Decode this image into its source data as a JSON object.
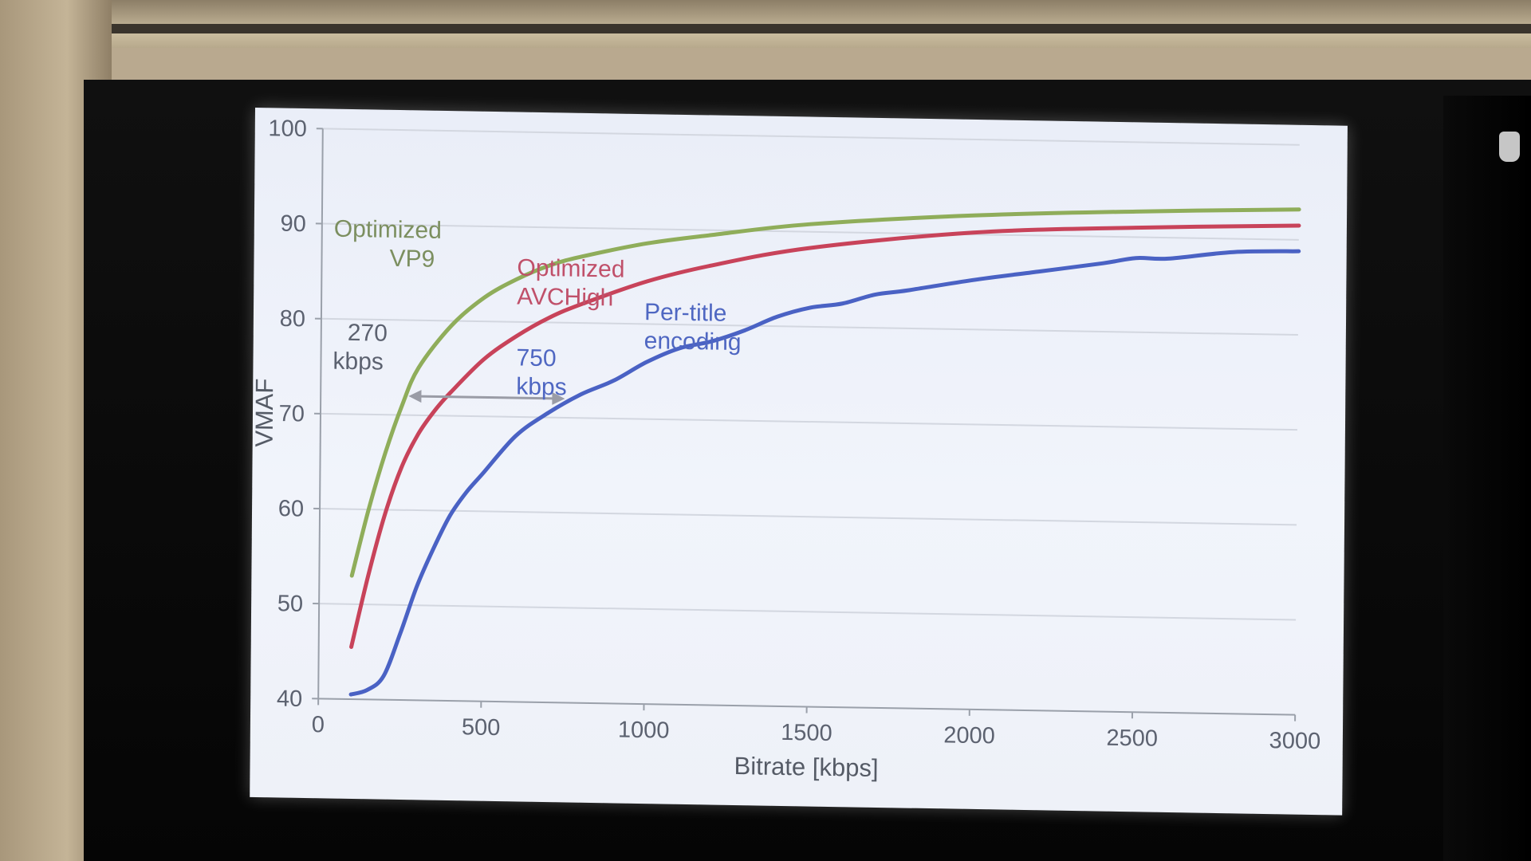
{
  "chart_data": {
    "type": "line",
    "xlabel": "Bitrate [kbps]",
    "ylabel": "VMAF",
    "xlim": [
      0,
      3000
    ],
    "ylim": [
      40,
      100
    ],
    "x_ticks": [
      "0",
      "500",
      "1000",
      "1500",
      "2000",
      "2500",
      "3000"
    ],
    "y_ticks": [
      "40",
      "50",
      "60",
      "70",
      "80",
      "90",
      "100"
    ],
    "grid": "horizontal",
    "series": [
      {
        "name": "Optimized VP9",
        "color": "#8fad5a",
        "x": [
          100,
          150,
          200,
          250,
          300,
          400,
          500,
          600,
          700,
          800,
          1000,
          1200,
          1500,
          2000,
          2500,
          3000
        ],
        "y": [
          53,
          60,
          66,
          71,
          75,
          79.5,
          82.5,
          84.5,
          86,
          87,
          88.5,
          89.5,
          90.8,
          92,
          92.7,
          93.2
        ]
      },
      {
        "name": "Optimized AVCHigh",
        "color": "#c8435a",
        "x": [
          100,
          150,
          200,
          250,
          300,
          350,
          400,
          500,
          600,
          700,
          800,
          1000,
          1200,
          1500,
          2000,
          2500,
          3000
        ],
        "y": [
          45.5,
          53,
          59.5,
          64.5,
          68,
          70.5,
          72.5,
          76,
          78.5,
          80.5,
          82,
          84.5,
          86.3,
          88.3,
          90.2,
          91,
          91.5
        ]
      },
      {
        "name": "Per-title encoding",
        "color": "#4a62c4",
        "x": [
          100,
          150,
          200,
          250,
          300,
          350,
          400,
          450,
          500,
          600,
          700,
          800,
          900,
          1000,
          1100,
          1200,
          1300,
          1400,
          1500,
          1600,
          1700,
          1800,
          2000,
          2200,
          2400,
          2500,
          2600,
          2800,
          3000
        ],
        "y": [
          40.5,
          41,
          42.5,
          47,
          52,
          56,
          59.5,
          62,
          64,
          68,
          70.5,
          72.5,
          74,
          76,
          77.5,
          78.3,
          79.5,
          81,
          82,
          82.5,
          83.5,
          84,
          85.2,
          86.2,
          87.2,
          87.8,
          87.8,
          88.6,
          88.8
        ]
      }
    ],
    "annotations": [
      {
        "lines": [
          "Optimized",
          "VP9"
        ],
        "color": "#7c8f60"
      },
      {
        "lines": [
          "Optimized",
          "AVCHigh"
        ],
        "color": "#c0506a"
      },
      {
        "lines": [
          "Per-title",
          "encoding"
        ],
        "color": "#4f67c2"
      },
      {
        "lines": [
          "270",
          "kbps"
        ],
        "color": "#5c6270"
      },
      {
        "lines": [
          "750",
          "kbps"
        ],
        "color": "#4f67c2"
      }
    ],
    "arrow": {
      "from_x": 270,
      "to_x": 750,
      "y": 72
    }
  }
}
